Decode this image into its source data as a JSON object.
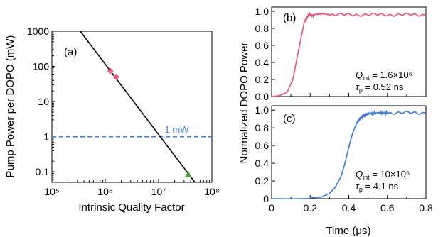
{
  "colors": {
    "black_line": "#000000",
    "dashed_blue": "#4a86d8",
    "pink": "#e85a80",
    "green": "#4a9a2e",
    "blue_trace": "#3f7bd0",
    "pink_trace": "#e8507e"
  },
  "chart_data": [
    {
      "type": "line",
      "panel_label": "(a)",
      "xlabel": "Intrinsic Quality Factor",
      "ylabel": "Pump Power per DOPO (mW)",
      "xscale": "log",
      "yscale": "log",
      "xlim": [
        100000,
        100000000
      ],
      "ylim": [
        0.05,
        1000
      ],
      "x_ticks": [
        {
          "value": 100000,
          "label": "10⁵"
        },
        {
          "value": 1000000,
          "label": "10⁶"
        },
        {
          "value": 10000000,
          "label": "10⁷"
        },
        {
          "value": 100000000,
          "label": "10⁸"
        }
      ],
      "y_ticks": [
        {
          "value": 0.1,
          "label": "0.1"
        },
        {
          "value": 1,
          "label": "1"
        },
        {
          "value": 10,
          "label": "10"
        },
        {
          "value": 100,
          "label": "100"
        },
        {
          "value": 1000,
          "label": "1000"
        }
      ],
      "series": [
        {
          "style": "solid-line",
          "color": "#000000",
          "x": [
            340000,
            48000000
          ],
          "y": [
            1000,
            0.05
          ]
        },
        {
          "style": "dashed-line",
          "color": "#4a86d8",
          "x": [
            100000,
            100000000
          ],
          "y": [
            1,
            1
          ]
        },
        {
          "style": "markers",
          "marker": "diamond",
          "color": "#e85a80",
          "x": [
            1250000,
            1600000
          ],
          "y": [
            73,
            50
          ]
        },
        {
          "style": "markers",
          "marker": "triangle",
          "color": "#4a9a2e",
          "x": [
            36000000
          ],
          "y": [
            0.085
          ]
        }
      ],
      "annotations": [
        {
          "text": "1 mW",
          "x": 13000000,
          "y": 1.3,
          "color": "#4a86d8"
        }
      ]
    },
    {
      "type": "line",
      "panel_label": "(b)",
      "ylabel": "Normalized DOPO Power",
      "xlim": [
        0,
        0.8
      ],
      "ylim": [
        0,
        1.05
      ],
      "y_ticks": [
        "0.0",
        "0.2",
        "0.4",
        "0.6",
        "0.8",
        "1.0"
      ],
      "series": [
        {
          "color": "#e8507e",
          "x": [
            0,
            0.04,
            0.08,
            0.11,
            0.14,
            0.17,
            0.19,
            0.22,
            0.3,
            0.4,
            0.5,
            0.6,
            0.7,
            0.8
          ],
          "y": [
            0,
            0.01,
            0.05,
            0.2,
            0.55,
            0.88,
            0.95,
            0.96,
            0.96,
            0.96,
            0.96,
            0.96,
            0.96,
            0.96
          ]
        }
      ],
      "annotations": [
        {
          "text": "Q_int = 1.6×10⁶"
        },
        {
          "text": "τ_p = 0.52 ns"
        }
      ],
      "q_main": "Q",
      "q_sub": "int",
      "q_value": " = 1.6×10⁶",
      "tau_main": "τ",
      "tau_sub": "p",
      "tau_value": " = 0.52 ns"
    },
    {
      "type": "line",
      "panel_label": "(c)",
      "xlabel": "Time (μs)",
      "xlim": [
        0,
        0.8
      ],
      "ylim": [
        0,
        1.05
      ],
      "x_ticks": [
        "0",
        "0.2",
        "0.4",
        "0.6",
        "0.8"
      ],
      "y_ticks": [
        "0",
        "0.2",
        "0.4",
        "0.6",
        "0.8",
        "1.0"
      ],
      "series": [
        {
          "color": "#3f7bd0",
          "x": [
            0,
            0.1,
            0.2,
            0.26,
            0.3,
            0.33,
            0.36,
            0.38,
            0.4,
            0.42,
            0.44,
            0.46,
            0.48,
            0.5,
            0.55,
            0.6,
            0.7,
            0.8
          ],
          "y": [
            0,
            0,
            0.005,
            0.02,
            0.06,
            0.13,
            0.25,
            0.4,
            0.58,
            0.74,
            0.85,
            0.91,
            0.94,
            0.96,
            0.97,
            0.97,
            0.97,
            0.97
          ]
        }
      ],
      "q_main": "Q",
      "q_sub": "int",
      "q_value": " = 10×10⁶",
      "tau_main": "τ",
      "tau_sub": "p",
      "tau_value": " = 4.1 ns"
    }
  ]
}
